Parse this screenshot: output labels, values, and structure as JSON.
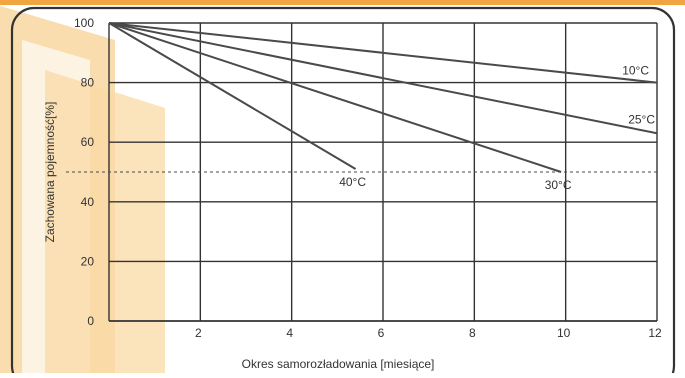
{
  "colors": {
    "top_bar": "#f0a540",
    "watermark": "#f9d9a6",
    "axis_frame": "#333333",
    "grid": "#333333",
    "line": "#4a4a4a",
    "text": "#333333"
  },
  "chart_data": {
    "type": "line",
    "title": "",
    "xlabel": "Okres samorozładowania [miesiące]",
    "ylabel": "Zachowana pojemność[%]",
    "xlim": [
      0,
      12
    ],
    "ylim": [
      0,
      100
    ],
    "x_ticks": [
      2,
      4,
      6,
      8,
      10,
      12
    ],
    "y_ticks": [
      0,
      20,
      40,
      60,
      80,
      100
    ],
    "x_tick_labels": [
      "2",
      "4",
      "6",
      "8",
      "10",
      "12"
    ],
    "y_tick_labels": [
      "0",
      "20",
      "40",
      "60",
      "80",
      "100"
    ],
    "grid": true,
    "reference_line": {
      "y": 50,
      "style": "dashed"
    },
    "series": [
      {
        "name": "10°C",
        "x": [
          0,
          12
        ],
        "y": [
          100,
          80
        ]
      },
      {
        "name": "25°C",
        "x": [
          0,
          12
        ],
        "y": [
          100,
          63
        ]
      },
      {
        "name": "30°C",
        "x": [
          0,
          9.9
        ],
        "y": [
          100,
          50
        ]
      },
      {
        "name": "40°C",
        "x": [
          0,
          5.4
        ],
        "y": [
          100,
          51
        ]
      }
    ]
  }
}
